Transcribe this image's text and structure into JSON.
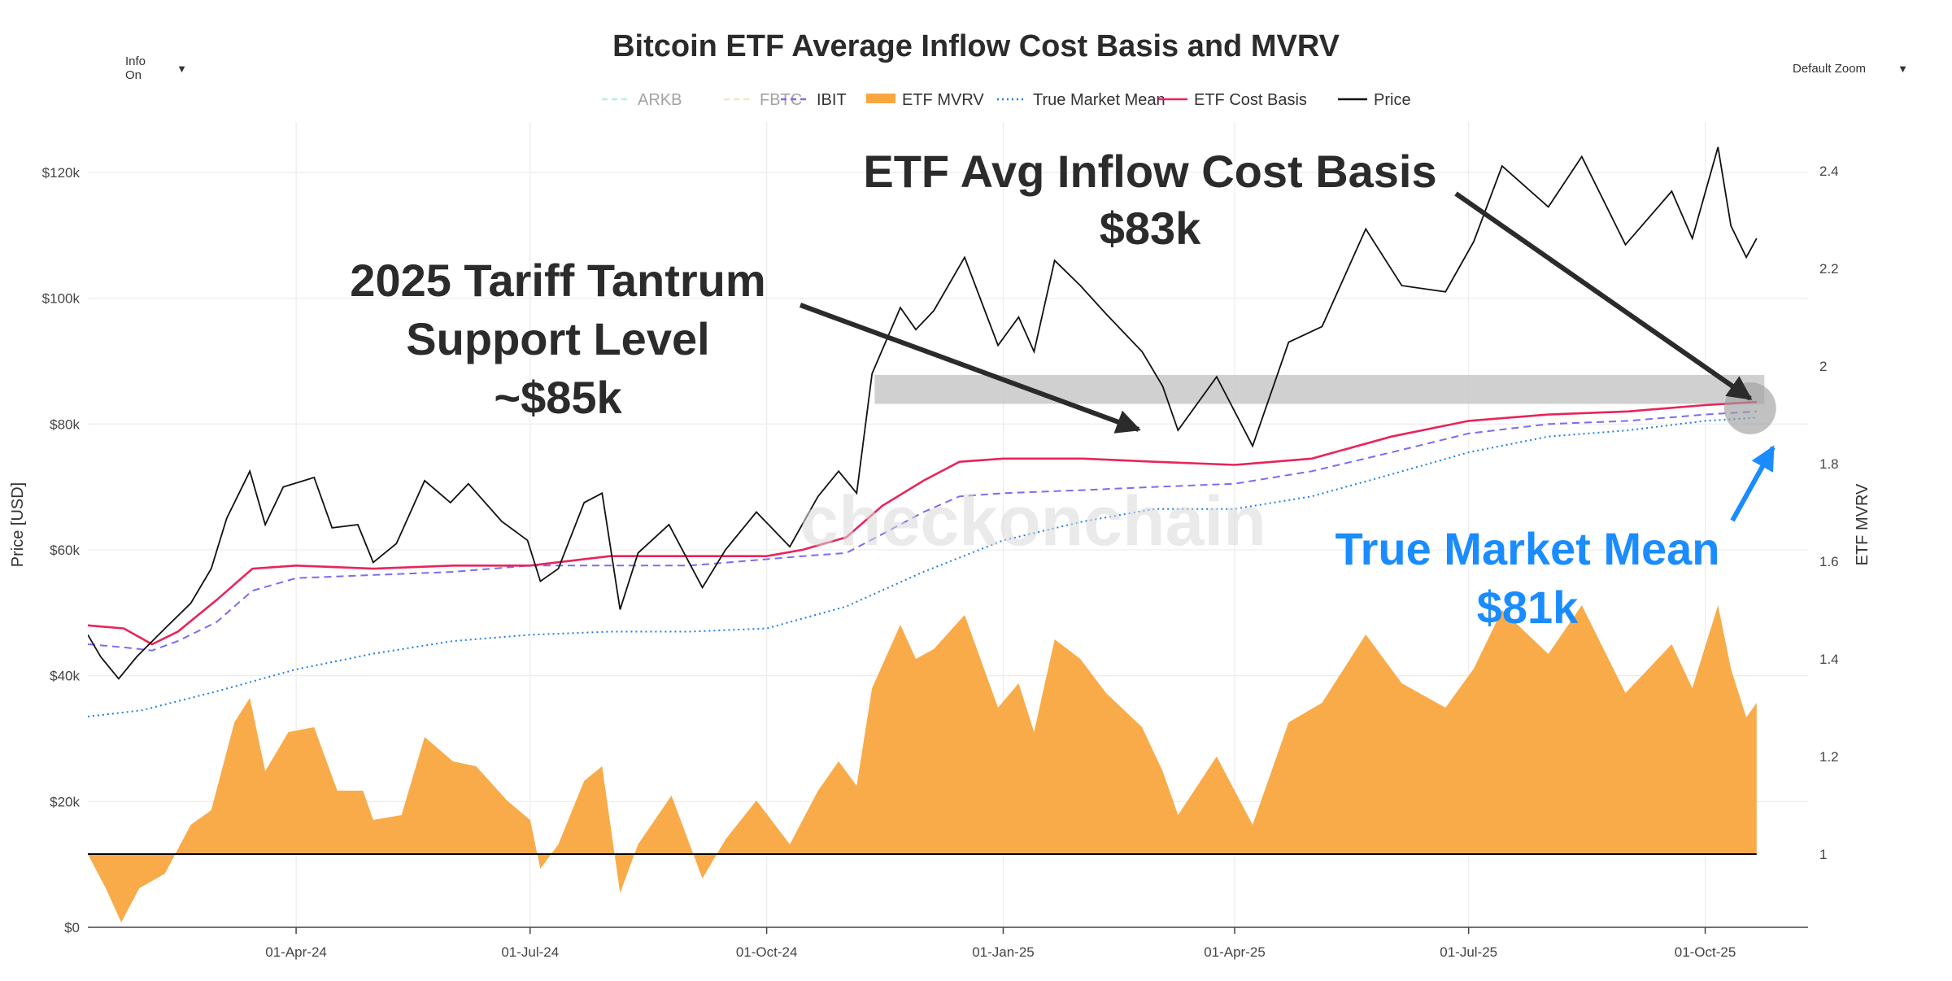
{
  "controls": {
    "info_label": "Info On",
    "zoom_label": "Default Zoom",
    "caret": "▼"
  },
  "watermark": "checkonchain",
  "colors": {
    "price": "#111111",
    "cost_basis": "#e8245a",
    "ibit": "#7b6cf0",
    "true_market_mean": "#1c7ee6",
    "mvrv_fill": "#f9a63f",
    "arkb": "#58e0c4",
    "fbtc": "#f7c27a",
    "highlight": "#c8c8c8",
    "annotation_dark": "#2b2b2b",
    "annotation_blue": "#1a8cff",
    "baseline": "#000000"
  },
  "annotations": {
    "etf_cost_basis_line1": "ETF Avg Inflow Cost Basis",
    "etf_cost_basis_line2": "$83k",
    "tariff_line1": "2025 Tariff Tantrum",
    "tariff_line2": "Support Level",
    "tariff_line3": "~$85k",
    "tmm_line1": "True Market Mean",
    "tmm_line2": "$81k"
  },
  "chart_data": {
    "type": "line",
    "title": "Bitcoin ETF Average Inflow Cost Basis and MVRV",
    "ylabel": "Price [USD]",
    "y2label": "ETF MVRV",
    "ylim": [
      0,
      128000
    ],
    "y2lim": [
      0.85,
      2.5
    ],
    "x_range": [
      "2024-01-11",
      "2025-11-10"
    ],
    "yticks": [
      0,
      20000,
      40000,
      60000,
      80000,
      100000,
      120000
    ],
    "ytick_labels": [
      "$0",
      "$20k",
      "$40k",
      "$60k",
      "$80k",
      "$100k",
      "$120k"
    ],
    "y2ticks": [
      1,
      1.2,
      1.4,
      1.6,
      1.8,
      2,
      2.2,
      2.4
    ],
    "y2tick_labels": [
      "1",
      "1.2",
      "1.4",
      "1.6",
      "1.8",
      "2",
      "2.2",
      "2.4"
    ],
    "xticks": [
      "2024-04-01",
      "2024-07-01",
      "2024-10-01",
      "2025-01-01",
      "2025-04-01",
      "2025-07-01",
      "2025-10-01"
    ],
    "xtick_labels": [
      "01-Apr-24",
      "01-Jul-24",
      "01-Oct-24",
      "01-Jan-25",
      "01-Apr-25",
      "01-Jul-25",
      "01-Oct-25"
    ],
    "legend": [
      {
        "name": "ARKB",
        "style": "dash",
        "color": "#58e0c4",
        "hidden": true
      },
      {
        "name": "FBTC",
        "style": "dash",
        "color": "#f7c27a",
        "hidden": true
      },
      {
        "name": "IBIT",
        "style": "dash",
        "color": "#7b6cf0",
        "hidden": false
      },
      {
        "name": "ETF MVRV",
        "style": "area",
        "color": "#f9a63f",
        "hidden": false
      },
      {
        "name": "True Market Mean",
        "style": "dot",
        "color": "#1c7ee6",
        "hidden": false
      },
      {
        "name": "ETF Cost Basis",
        "style": "solid",
        "color": "#e8245a",
        "hidden": false
      },
      {
        "name": "Price",
        "style": "solid",
        "color": "#111111",
        "hidden": false
      }
    ],
    "highlight_band": {
      "y0": 83200,
      "y1": 87800
    },
    "series": [
      {
        "name": "Price",
        "axis": "y",
        "points": [
          [
            "2024-01-11",
            46500
          ],
          [
            "2024-01-16",
            43000
          ],
          [
            "2024-01-23",
            39500
          ],
          [
            "2024-01-30",
            43000
          ],
          [
            "2024-02-10",
            47500
          ],
          [
            "2024-02-20",
            51500
          ],
          [
            "2024-02-28",
            57000
          ],
          [
            "2024-03-05",
            65000
          ],
          [
            "2024-03-14",
            72500
          ],
          [
            "2024-03-20",
            64000
          ],
          [
            "2024-03-27",
            70000
          ],
          [
            "2024-04-08",
            71500
          ],
          [
            "2024-04-15",
            63500
          ],
          [
            "2024-04-25",
            64000
          ],
          [
            "2024-05-01",
            58000
          ],
          [
            "2024-05-10",
            61000
          ],
          [
            "2024-05-21",
            71000
          ],
          [
            "2024-05-31",
            67500
          ],
          [
            "2024-06-07",
            70500
          ],
          [
            "2024-06-20",
            64500
          ],
          [
            "2024-06-30",
            61500
          ],
          [
            "2024-07-05",
            55000
          ],
          [
            "2024-07-12",
            57000
          ],
          [
            "2024-07-22",
            67500
          ],
          [
            "2024-07-29",
            69000
          ],
          [
            "2024-08-05",
            50500
          ],
          [
            "2024-08-12",
            59500
          ],
          [
            "2024-08-24",
            64000
          ],
          [
            "2024-09-06",
            54000
          ],
          [
            "2024-09-15",
            60000
          ],
          [
            "2024-09-27",
            66000
          ],
          [
            "2024-10-10",
            60500
          ],
          [
            "2024-10-21",
            68500
          ],
          [
            "2024-10-29",
            72500
          ],
          [
            "2024-11-05",
            69000
          ],
          [
            "2024-11-11",
            88000
          ],
          [
            "2024-11-22",
            98500
          ],
          [
            "2024-11-28",
            95000
          ],
          [
            "2024-12-05",
            98000
          ],
          [
            "2024-12-17",
            106500
          ],
          [
            "2024-12-30",
            92500
          ],
          [
            "2025-01-07",
            97000
          ],
          [
            "2025-01-13",
            91500
          ],
          [
            "2025-01-21",
            106000
          ],
          [
            "2025-01-31",
            102000
          ],
          [
            "2025-02-10",
            97500
          ],
          [
            "2025-02-24",
            91500
          ],
          [
            "2025-03-04",
            86000
          ],
          [
            "2025-03-10",
            79000
          ],
          [
            "2025-03-25",
            87500
          ],
          [
            "2025-04-08",
            76500
          ],
          [
            "2025-04-22",
            93000
          ],
          [
            "2025-05-05",
            95500
          ],
          [
            "2025-05-22",
            111000
          ],
          [
            "2025-06-05",
            102000
          ],
          [
            "2025-06-22",
            101000
          ],
          [
            "2025-07-03",
            109000
          ],
          [
            "2025-07-14",
            121000
          ],
          [
            "2025-08-01",
            114500
          ],
          [
            "2025-08-14",
            122500
          ],
          [
            "2025-08-31",
            108500
          ],
          [
            "2025-09-18",
            117000
          ],
          [
            "2025-09-26",
            109500
          ],
          [
            "2025-10-06",
            124000
          ],
          [
            "2025-10-11",
            111500
          ],
          [
            "2025-10-17",
            106500
          ],
          [
            "2025-10-21",
            109500
          ]
        ]
      },
      {
        "name": "ETF Cost Basis",
        "axis": "y",
        "points": [
          [
            "2024-01-11",
            48000
          ],
          [
            "2024-01-25",
            47500
          ],
          [
            "2024-02-05",
            45000
          ],
          [
            "2024-02-15",
            47000
          ],
          [
            "2024-03-01",
            52000
          ],
          [
            "2024-03-15",
            57000
          ],
          [
            "2024-04-01",
            57500
          ],
          [
            "2024-05-01",
            57000
          ],
          [
            "2024-06-01",
            57500
          ],
          [
            "2024-07-01",
            57500
          ],
          [
            "2024-08-01",
            59000
          ],
          [
            "2024-09-01",
            59000
          ],
          [
            "2024-10-01",
            59000
          ],
          [
            "2024-10-15",
            60000
          ],
          [
            "2024-11-01",
            62000
          ],
          [
            "2024-11-15",
            67000
          ],
          [
            "2024-12-01",
            71000
          ],
          [
            "2024-12-15",
            74000
          ],
          [
            "2025-01-01",
            74500
          ],
          [
            "2025-02-01",
            74500
          ],
          [
            "2025-03-01",
            74000
          ],
          [
            "2025-04-01",
            73500
          ],
          [
            "2025-05-01",
            74500
          ],
          [
            "2025-06-01",
            78000
          ],
          [
            "2025-07-01",
            80500
          ],
          [
            "2025-08-01",
            81500
          ],
          [
            "2025-09-01",
            82000
          ],
          [
            "2025-10-01",
            83000
          ],
          [
            "2025-10-21",
            83500
          ]
        ]
      },
      {
        "name": "IBIT",
        "axis": "y",
        "points": [
          [
            "2024-01-11",
            45000
          ],
          [
            "2024-01-25",
            44500
          ],
          [
            "2024-02-05",
            44000
          ],
          [
            "2024-02-15",
            45500
          ],
          [
            "2024-03-01",
            48500
          ],
          [
            "2024-03-15",
            53500
          ],
          [
            "2024-04-01",
            55500
          ],
          [
            "2024-05-01",
            56000
          ],
          [
            "2024-06-01",
            56500
          ],
          [
            "2024-07-01",
            57500
          ],
          [
            "2024-08-01",
            57500
          ],
          [
            "2024-09-01",
            57500
          ],
          [
            "2024-10-01",
            58500
          ],
          [
            "2024-10-15",
            59000
          ],
          [
            "2024-11-01",
            59500
          ],
          [
            "2024-11-15",
            62500
          ],
          [
            "2024-12-01",
            66000
          ],
          [
            "2024-12-15",
            68500
          ],
          [
            "2025-01-01",
            69000
          ],
          [
            "2025-02-01",
            69500
          ],
          [
            "2025-03-01",
            70000
          ],
          [
            "2025-04-01",
            70500
          ],
          [
            "2025-05-01",
            72500
          ],
          [
            "2025-06-01",
            75500
          ],
          [
            "2025-07-01",
            78500
          ],
          [
            "2025-08-01",
            80000
          ],
          [
            "2025-09-01",
            80500
          ],
          [
            "2025-10-01",
            81500
          ],
          [
            "2025-10-21",
            82000
          ]
        ]
      },
      {
        "name": "True Market Mean",
        "axis": "y",
        "points": [
          [
            "2024-01-11",
            33500
          ],
          [
            "2024-02-01",
            34500
          ],
          [
            "2024-03-01",
            37500
          ],
          [
            "2024-04-01",
            41000
          ],
          [
            "2024-05-01",
            43500
          ],
          [
            "2024-06-01",
            45500
          ],
          [
            "2024-07-01",
            46500
          ],
          [
            "2024-08-01",
            47000
          ],
          [
            "2024-09-01",
            47000
          ],
          [
            "2024-10-01",
            47500
          ],
          [
            "2024-11-01",
            51000
          ],
          [
            "2024-12-01",
            56500
          ],
          [
            "2025-01-01",
            61500
          ],
          [
            "2025-02-01",
            64500
          ],
          [
            "2025-03-01",
            66500
          ],
          [
            "2025-04-01",
            66500
          ],
          [
            "2025-05-01",
            68500
          ],
          [
            "2025-06-01",
            72000
          ],
          [
            "2025-07-01",
            75500
          ],
          [
            "2025-08-01",
            78000
          ],
          [
            "2025-09-01",
            79000
          ],
          [
            "2025-10-01",
            80500
          ],
          [
            "2025-10-21",
            81000
          ]
        ]
      },
      {
        "name": "ETF MVRV",
        "axis": "y2",
        "points": [
          [
            "2024-01-11",
            1.0
          ],
          [
            "2024-01-18",
            0.93
          ],
          [
            "2024-01-24",
            0.86
          ],
          [
            "2024-01-31",
            0.93
          ],
          [
            "2024-02-10",
            0.96
          ],
          [
            "2024-02-20",
            1.06
          ],
          [
            "2024-02-28",
            1.09
          ],
          [
            "2024-03-08",
            1.27
          ],
          [
            "2024-03-14",
            1.32
          ],
          [
            "2024-03-20",
            1.17
          ],
          [
            "2024-03-29",
            1.25
          ],
          [
            "2024-04-08",
            1.26
          ],
          [
            "2024-04-17",
            1.13
          ],
          [
            "2024-04-27",
            1.13
          ],
          [
            "2024-05-01",
            1.07
          ],
          [
            "2024-05-12",
            1.08
          ],
          [
            "2024-05-21",
            1.24
          ],
          [
            "2024-06-01",
            1.19
          ],
          [
            "2024-06-10",
            1.18
          ],
          [
            "2024-06-22",
            1.11
          ],
          [
            "2024-07-01",
            1.07
          ],
          [
            "2024-07-05",
            0.97
          ],
          [
            "2024-07-12",
            1.02
          ],
          [
            "2024-07-22",
            1.15
          ],
          [
            "2024-07-29",
            1.18
          ],
          [
            "2024-08-05",
            0.92
          ],
          [
            "2024-08-12",
            1.02
          ],
          [
            "2024-08-25",
            1.12
          ],
          [
            "2024-09-06",
            0.95
          ],
          [
            "2024-09-15",
            1.03
          ],
          [
            "2024-09-27",
            1.11
          ],
          [
            "2024-10-10",
            1.02
          ],
          [
            "2024-10-21",
            1.13
          ],
          [
            "2024-10-29",
            1.19
          ],
          [
            "2024-11-05",
            1.14
          ],
          [
            "2024-11-11",
            1.34
          ],
          [
            "2024-11-22",
            1.47
          ],
          [
            "2024-11-28",
            1.4
          ],
          [
            "2024-12-05",
            1.42
          ],
          [
            "2024-12-17",
            1.49
          ],
          [
            "2024-12-30",
            1.3
          ],
          [
            "2025-01-07",
            1.35
          ],
          [
            "2025-01-13",
            1.25
          ],
          [
            "2025-01-21",
            1.44
          ],
          [
            "2025-01-31",
            1.4
          ],
          [
            "2025-02-10",
            1.33
          ],
          [
            "2025-02-24",
            1.26
          ],
          [
            "2025-03-04",
            1.17
          ],
          [
            "2025-03-10",
            1.08
          ],
          [
            "2025-03-25",
            1.2
          ],
          [
            "2025-04-08",
            1.06
          ],
          [
            "2025-04-22",
            1.27
          ],
          [
            "2025-05-05",
            1.31
          ],
          [
            "2025-05-22",
            1.45
          ],
          [
            "2025-06-05",
            1.35
          ],
          [
            "2025-06-22",
            1.3
          ],
          [
            "2025-07-03",
            1.38
          ],
          [
            "2025-07-14",
            1.5
          ],
          [
            "2025-08-01",
            1.41
          ],
          [
            "2025-08-14",
            1.51
          ],
          [
            "2025-08-31",
            1.33
          ],
          [
            "2025-09-18",
            1.43
          ],
          [
            "2025-09-26",
            1.34
          ],
          [
            "2025-10-06",
            1.51
          ],
          [
            "2025-10-11",
            1.38
          ],
          [
            "2025-10-17",
            1.28
          ],
          [
            "2025-10-21",
            1.31
          ]
        ]
      }
    ]
  }
}
